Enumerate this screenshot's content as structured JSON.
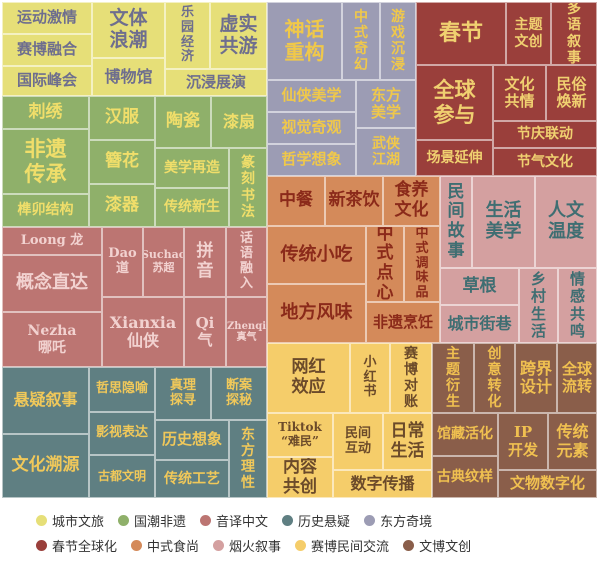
{
  "chart_data": {
    "type": "treemap",
    "legend_position": "bottom",
    "groups": [
      {
        "name": "城市文旅",
        "color": "#e6df78",
        "text_color": "#6e6e8e",
        "items": [
          {
            "label": "运动激情"
          },
          {
            "label": "赛博融合"
          },
          {
            "label": "国际峰会"
          },
          {
            "label": "文体浪潮"
          },
          {
            "label": "博物馆"
          },
          {
            "label": "乐园经济"
          },
          {
            "label": "虚实共游"
          },
          {
            "label": "沉浸展演"
          }
        ]
      },
      {
        "name": "国潮非遗",
        "color": "#8fb06a",
        "text_color": "#f0de6a",
        "items": [
          {
            "label": "刺绣"
          },
          {
            "label": "非遗传承"
          },
          {
            "label": "榫卯结构"
          },
          {
            "label": "汉服"
          },
          {
            "label": "簪花"
          },
          {
            "label": "漆器"
          },
          {
            "label": "陶瓷"
          },
          {
            "label": "漆扇"
          },
          {
            "label": "美学再造"
          },
          {
            "label": "传统新生"
          },
          {
            "label": "篆刻书法"
          }
        ]
      },
      {
        "name": "音译中文",
        "color": "#bc7572",
        "text_color": "#f2d2d0",
        "items": [
          {
            "label": "Loong 龙"
          },
          {
            "label": "概念直达"
          },
          {
            "label": "Nezha 哪吒"
          },
          {
            "label": "Dao 道"
          },
          {
            "label": "Suchao 苏超"
          },
          {
            "label": "拼音"
          },
          {
            "label": "话语融入"
          },
          {
            "label": "Xianxia 仙侠"
          },
          {
            "label": "Qi 气"
          },
          {
            "label": "Zhenqi 真气"
          }
        ]
      },
      {
        "name": "历史悬疑",
        "color": "#5f7f82",
        "text_color": "#f0c85a",
        "items": [
          {
            "label": "悬疑叙事"
          },
          {
            "label": "文化溯源"
          },
          {
            "label": "哲思隐喻"
          },
          {
            "label": "影视表达"
          },
          {
            "label": "古都文明"
          },
          {
            "label": "真理探寻"
          },
          {
            "label": "断案探秘"
          },
          {
            "label": "历史想象"
          },
          {
            "label": "传统工艺"
          },
          {
            "label": "东方理性"
          }
        ]
      },
      {
        "name": "东方奇境",
        "color": "#9c9cb4",
        "text_color": "#f0c84a",
        "items": [
          {
            "label": "神话重构"
          },
          {
            "label": "中式奇幻"
          },
          {
            "label": "游戏沉浸"
          },
          {
            "label": "仙侠美学"
          },
          {
            "label": "视觉奇观"
          },
          {
            "label": "哲学想象"
          },
          {
            "label": "东方美学"
          },
          {
            "label": "武侠江湖"
          }
        ]
      },
      {
        "name": "春节全球化",
        "color": "#9a3f3b",
        "text_color": "#f0d070",
        "items": [
          {
            "label": "春节"
          },
          {
            "label": "主题文创"
          },
          {
            "label": "多语叙事"
          },
          {
            "label": "全球参与"
          },
          {
            "label": "场景延伸"
          },
          {
            "label": "文化共情"
          },
          {
            "label": "民俗焕新"
          },
          {
            "label": "节庆联动"
          },
          {
            "label": "节气文化"
          }
        ]
      },
      {
        "name": "中式食尚",
        "color": "#d48a5a",
        "text_color": "#8b2a1a",
        "items": [
          {
            "label": "中餐"
          },
          {
            "label": "新茶饮"
          },
          {
            "label": "食养文化"
          },
          {
            "label": "传统小吃"
          },
          {
            "label": "地方风味"
          },
          {
            "label": "中式点心"
          },
          {
            "label": "中式调味品"
          },
          {
            "label": "非遗烹饪"
          }
        ]
      },
      {
        "name": "烟火叙事",
        "color": "#d4a0a0",
        "text_color": "#3f6e72",
        "items": [
          {
            "label": "民间故事"
          },
          {
            "label": "生活美学"
          },
          {
            "label": "人文温度"
          },
          {
            "label": "草根"
          },
          {
            "label": "城市街巷"
          },
          {
            "label": "乡村生活"
          },
          {
            "label": "情感共鸣"
          }
        ]
      },
      {
        "name": "赛博民间交流",
        "color": "#f5cd6a",
        "text_color": "#6b4a2a",
        "items": [
          {
            "label": "网红效应"
          },
          {
            "label": "小红书"
          },
          {
            "label": "赛博对账"
          },
          {
            "label": "Tiktok “难民”"
          },
          {
            "label": "内容共创"
          },
          {
            "label": "民间互动"
          },
          {
            "label": "日常生活"
          },
          {
            "label": "数字传播"
          }
        ]
      },
      {
        "name": "文博文创",
        "color": "#8a5e4a",
        "text_color": "#f0c050",
        "items": [
          {
            "label": "主题衍生"
          },
          {
            "label": "创意转化"
          },
          {
            "label": "跨界设计"
          },
          {
            "label": "全球流转"
          },
          {
            "label": "馆藏活化"
          },
          {
            "label": "古典纹样"
          },
          {
            "label": "IP开发"
          },
          {
            "label": "传统元素"
          },
          {
            "label": "文物数字化"
          }
        ]
      }
    ]
  }
}
